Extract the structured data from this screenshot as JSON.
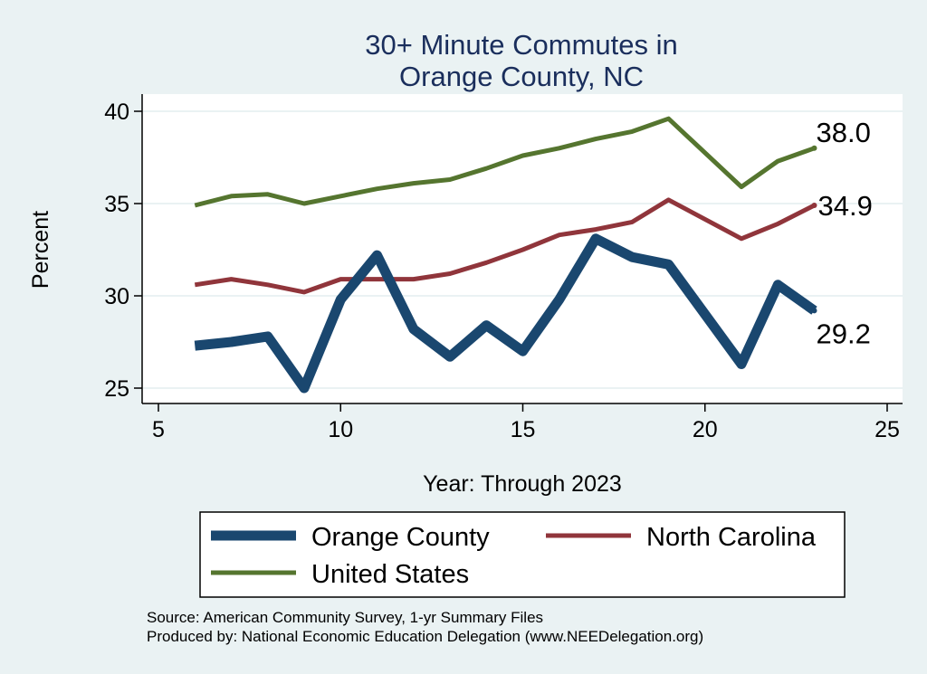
{
  "chart_data": {
    "type": "line",
    "title": [
      "30+ Minute Commutes in",
      "Orange County, NC"
    ],
    "xlabel": "Year: Through 2023",
    "ylabel": "Percent",
    "xlim": [
      5,
      25
    ],
    "ylim": [
      25,
      40
    ],
    "xticks": [
      5,
      10,
      15,
      20,
      25
    ],
    "yticks": [
      25,
      30,
      35,
      40
    ],
    "grid": true,
    "legend_position": "bottom",
    "series": [
      {
        "name": "Orange County",
        "color": "#1a476f",
        "thickness": "thick",
        "x": [
          6,
          7,
          8,
          9,
          10,
          11,
          12,
          13,
          14,
          15,
          16,
          17,
          18,
          19,
          21,
          22,
          23
        ],
        "values": [
          27.3,
          27.5,
          27.8,
          25.0,
          29.8,
          32.2,
          28.2,
          26.7,
          28.4,
          27.0,
          29.8,
          33.1,
          32.1,
          31.7,
          26.3,
          30.6,
          29.2
        ],
        "end_label": "29.2"
      },
      {
        "name": "North Carolina",
        "color": "#90353b",
        "thickness": "medium",
        "x": [
          6,
          7,
          8,
          9,
          10,
          11,
          12,
          13,
          14,
          15,
          16,
          17,
          18,
          19,
          21,
          22,
          23
        ],
        "values": [
          30.6,
          30.9,
          30.6,
          30.2,
          30.9,
          30.9,
          30.9,
          31.2,
          31.8,
          32.5,
          33.3,
          33.6,
          34.0,
          35.2,
          33.1,
          33.9,
          34.9
        ],
        "end_label": "34.9"
      },
      {
        "name": "United States",
        "color": "#55752f",
        "thickness": "medium",
        "x": [
          6,
          7,
          8,
          9,
          10,
          11,
          12,
          13,
          14,
          15,
          16,
          17,
          18,
          19,
          21,
          22,
          23
        ],
        "values": [
          34.9,
          35.4,
          35.5,
          35.0,
          35.4,
          35.8,
          36.1,
          36.3,
          36.9,
          37.6,
          38.0,
          38.5,
          38.9,
          39.6,
          35.9,
          37.3,
          38.0
        ],
        "end_label": "38.0"
      }
    ]
  },
  "source_lines": [
    "Source: American Community Survey, 1-yr Summary Files",
    "Produced by: National Economic Education Delegation (www.NEEDelegation.org)"
  ]
}
